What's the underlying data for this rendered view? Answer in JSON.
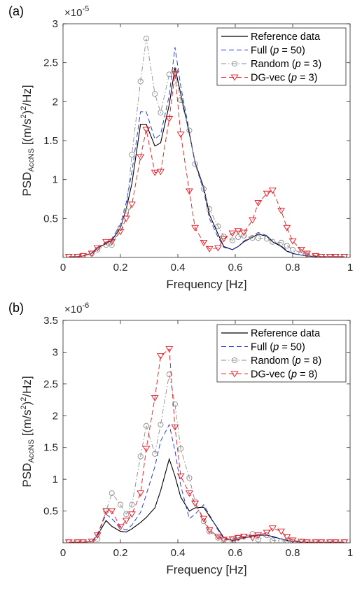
{
  "chart_data": [
    {
      "type": "line",
      "panel_label": "(a)",
      "exponent": {
        "base": "×10",
        "power": "-5"
      },
      "xlabel": "Frequency [Hz]",
      "ylabel": {
        "main": "PSD",
        "sub": "AccNS",
        "unit_a": " [(m/s",
        "sup": "2",
        "unit_b": ")",
        "sup2": "2",
        "unit_c": "/Hz]"
      },
      "xlim": [
        0,
        1
      ],
      "ylim": [
        0,
        3
      ],
      "xticks": [
        0,
        0.2,
        0.4,
        0.6,
        0.8,
        1
      ],
      "xtick_labels": [
        "0",
        "0.2",
        "0.4",
        "0.6",
        "0.8",
        "1"
      ],
      "yticks": [
        0.5,
        1,
        1.5,
        2,
        2.5,
        3
      ],
      "ytick_labels": [
        "0.5",
        "1",
        "1.5",
        "2",
        "2.5",
        "3"
      ],
      "legend_position": "top-right",
      "series": [
        {
          "name": "Reference data",
          "color": "#000000",
          "style": "solid",
          "marker": "none",
          "x": [
            0.02,
            0.05,
            0.07,
            0.1,
            0.12,
            0.15,
            0.17,
            0.2,
            0.22,
            0.24,
            0.27,
            0.29,
            0.32,
            0.34,
            0.37,
            0.39,
            0.41,
            0.44,
            0.46,
            0.49,
            0.51,
            0.54,
            0.56,
            0.59,
            0.61,
            0.63,
            0.66,
            0.68,
            0.71,
            0.73,
            0.76,
            0.78,
            0.8,
            0.83,
            0.85,
            0.88,
            0.9,
            0.93,
            0.95,
            0.98
          ],
          "y": [
            0.01,
            0.01,
            0.02,
            0.05,
            0.12,
            0.18,
            0.22,
            0.38,
            0.62,
            0.95,
            1.71,
            1.71,
            1.43,
            1.47,
            1.96,
            2.44,
            2.1,
            1.59,
            1.22,
            0.9,
            0.55,
            0.3,
            0.14,
            0.1,
            0.14,
            0.2,
            0.26,
            0.3,
            0.27,
            0.2,
            0.14,
            0.08,
            0.05,
            0.03,
            0.02,
            0.01,
            0.01,
            0.01,
            0.01,
            0.01
          ]
        },
        {
          "name": "Full (p = 50)",
          "color": "#1a2fd9",
          "style": "dashed",
          "marker": "none",
          "x": [
            0.02,
            0.05,
            0.07,
            0.1,
            0.12,
            0.15,
            0.17,
            0.2,
            0.22,
            0.24,
            0.27,
            0.29,
            0.32,
            0.34,
            0.37,
            0.39,
            0.41,
            0.44,
            0.46,
            0.49,
            0.51,
            0.54,
            0.56,
            0.59,
            0.61,
            0.63,
            0.66,
            0.68,
            0.71,
            0.73,
            0.76,
            0.78,
            0.8,
            0.83,
            0.85,
            0.88,
            0.9,
            0.93,
            0.95,
            0.98
          ],
          "y": [
            0.01,
            0.01,
            0.02,
            0.06,
            0.13,
            0.19,
            0.24,
            0.42,
            0.7,
            1.1,
            1.87,
            1.87,
            1.52,
            1.58,
            2.08,
            2.7,
            2.2,
            1.62,
            1.2,
            0.86,
            0.5,
            0.26,
            0.13,
            0.1,
            0.14,
            0.21,
            0.28,
            0.32,
            0.28,
            0.21,
            0.15,
            0.09,
            0.05,
            0.03,
            0.02,
            0.01,
            0.01,
            0.01,
            0.01,
            0.01
          ]
        },
        {
          "name": "Random (p = 3)",
          "color": "#8c8c8c",
          "style": "dashdot",
          "marker": "circle",
          "x": [
            0.02,
            0.05,
            0.07,
            0.1,
            0.12,
            0.15,
            0.17,
            0.2,
            0.22,
            0.24,
            0.27,
            0.29,
            0.32,
            0.34,
            0.37,
            0.39,
            0.41,
            0.44,
            0.46,
            0.49,
            0.51,
            0.54,
            0.56,
            0.59,
            0.61,
            0.63,
            0.66,
            0.68,
            0.71,
            0.73,
            0.76,
            0.78,
            0.8,
            0.83,
            0.85,
            0.88,
            0.9,
            0.93,
            0.95,
            0.98
          ],
          "y": [
            0.01,
            0.01,
            0.02,
            0.05,
            0.1,
            0.16,
            0.16,
            0.38,
            0.6,
            1.32,
            2.26,
            2.81,
            2.1,
            1.86,
            2.35,
            2.4,
            2.02,
            1.63,
            1.2,
            0.88,
            0.62,
            0.4,
            0.27,
            0.22,
            0.26,
            0.28,
            0.25,
            0.25,
            0.24,
            0.2,
            0.19,
            0.15,
            0.1,
            0.06,
            0.04,
            0.02,
            0.01,
            0.01,
            0.01,
            0.01
          ]
        },
        {
          "name": "DG-vec (p = 3)",
          "color": "#e8141e",
          "style": "dashed",
          "marker": "triangle-down",
          "x": [
            0.02,
            0.05,
            0.07,
            0.1,
            0.12,
            0.15,
            0.17,
            0.2,
            0.22,
            0.24,
            0.27,
            0.29,
            0.32,
            0.34,
            0.37,
            0.39,
            0.41,
            0.44,
            0.46,
            0.49,
            0.51,
            0.54,
            0.56,
            0.59,
            0.61,
            0.63,
            0.66,
            0.68,
            0.71,
            0.73,
            0.76,
            0.78,
            0.8,
            0.83,
            0.85,
            0.88,
            0.9,
            0.93,
            0.95,
            0.98
          ],
          "y": [
            0.01,
            0.01,
            0.02,
            0.05,
            0.12,
            0.2,
            0.2,
            0.33,
            0.5,
            0.68,
            1.29,
            1.64,
            1.09,
            1.1,
            1.78,
            2.36,
            1.58,
            0.85,
            0.38,
            0.19,
            0.11,
            0.12,
            0.24,
            0.31,
            0.34,
            0.32,
            0.48,
            0.7,
            0.82,
            0.86,
            0.6,
            0.38,
            0.21,
            0.1,
            0.05,
            0.02,
            0.01,
            0.01,
            0.01,
            0.01
          ]
        }
      ]
    },
    {
      "type": "line",
      "panel_label": "(b)",
      "exponent": {
        "base": "×10",
        "power": "-6"
      },
      "xlabel": "Frequency [Hz]",
      "ylabel": {
        "main": "PSD",
        "sub": "AccNS",
        "unit_a": " [(m/s",
        "sup": "2",
        "unit_b": ")",
        "sup2": "2",
        "unit_c": "/Hz]"
      },
      "xlim": [
        0,
        1
      ],
      "ylim": [
        0,
        3.5
      ],
      "xticks": [
        0,
        0.2,
        0.4,
        0.6,
        0.8,
        1
      ],
      "xtick_labels": [
        "0",
        "0.2",
        "0.4",
        "0.6",
        "0.8",
        "1"
      ],
      "yticks": [
        0.5,
        1,
        1.5,
        2,
        2.5,
        3,
        3.5
      ],
      "ytick_labels": [
        "0.5",
        "1",
        "1.5",
        "2",
        "2.5",
        "3",
        "3.5"
      ],
      "legend_position": "top-right",
      "series": [
        {
          "name": "Reference data",
          "color": "#000000",
          "style": "solid",
          "marker": "none",
          "x": [
            0.02,
            0.05,
            0.07,
            0.1,
            0.12,
            0.15,
            0.17,
            0.2,
            0.22,
            0.24,
            0.27,
            0.29,
            0.32,
            0.34,
            0.37,
            0.39,
            0.41,
            0.44,
            0.46,
            0.49,
            0.51,
            0.54,
            0.56,
            0.59,
            0.61,
            0.63,
            0.66,
            0.68,
            0.71,
            0.73,
            0.76,
            0.78,
            0.8,
            0.83,
            0.85,
            0.88,
            0.9,
            0.93,
            0.95,
            0.98
          ],
          "y": [
            0.01,
            0.01,
            0.01,
            0.02,
            0.12,
            0.35,
            0.26,
            0.18,
            0.17,
            0.22,
            0.32,
            0.4,
            0.55,
            0.82,
            1.32,
            1.05,
            0.72,
            0.5,
            0.55,
            0.56,
            0.42,
            0.22,
            0.08,
            0.04,
            0.05,
            0.08,
            0.1,
            0.12,
            0.12,
            0.1,
            0.06,
            0.04,
            0.02,
            0.01,
            0.01,
            0.01,
            0.01,
            0.01,
            0.01,
            0.01
          ]
        },
        {
          "name": "Full (p = 50)",
          "color": "#1a2fd9",
          "style": "dashed",
          "marker": "none",
          "x": [
            0.02,
            0.05,
            0.07,
            0.1,
            0.12,
            0.15,
            0.17,
            0.2,
            0.22,
            0.24,
            0.27,
            0.29,
            0.32,
            0.34,
            0.37,
            0.39,
            0.41,
            0.44,
            0.46,
            0.49,
            0.51,
            0.54,
            0.56,
            0.59,
            0.61,
            0.63,
            0.66,
            0.68,
            0.71,
            0.73,
            0.76,
            0.78,
            0.8,
            0.83,
            0.85,
            0.88,
            0.9,
            0.93,
            0.95,
            0.98
          ],
          "y": [
            0.01,
            0.01,
            0.01,
            0.02,
            0.14,
            0.45,
            0.38,
            0.24,
            0.2,
            0.28,
            0.48,
            0.76,
            1.2,
            1.6,
            1.86,
            1.45,
            0.9,
            0.38,
            0.45,
            0.6,
            0.44,
            0.2,
            0.07,
            0.04,
            0.06,
            0.09,
            0.11,
            0.13,
            0.12,
            0.09,
            0.06,
            0.03,
            0.02,
            0.01,
            0.01,
            0.01,
            0.01,
            0.01,
            0.01,
            0.01
          ]
        },
        {
          "name": "Random (p = 8)",
          "color": "#8c8c8c",
          "style": "dashdot",
          "marker": "circle",
          "x": [
            0.02,
            0.05,
            0.07,
            0.1,
            0.12,
            0.15,
            0.17,
            0.2,
            0.22,
            0.24,
            0.27,
            0.29,
            0.32,
            0.34,
            0.37,
            0.39,
            0.41,
            0.44,
            0.46,
            0.49,
            0.51,
            0.54,
            0.56,
            0.59,
            0.61,
            0.63,
            0.66,
            0.68,
            0.71,
            0.73,
            0.76,
            0.78,
            0.8,
            0.83,
            0.85,
            0.88,
            0.9,
            0.93,
            0.95,
            0.98
          ],
          "y": [
            0.01,
            0.01,
            0.01,
            0.02,
            0.06,
            0.5,
            0.78,
            0.6,
            0.45,
            0.6,
            1.36,
            1.84,
            1.4,
            1.86,
            2.65,
            2.18,
            1.48,
            1.02,
            0.65,
            0.34,
            0.18,
            0.08,
            0.04,
            0.05,
            0.08,
            0.1,
            0.14,
            0.05,
            0.12,
            0.04,
            0.03,
            0.04,
            0.02,
            0.01,
            0.01,
            0.01,
            0.01,
            0.01,
            0.01,
            0.01
          ]
        },
        {
          "name": "DG-vec (p = 8)",
          "color": "#e8141e",
          "style": "dashed",
          "marker": "triangle-down",
          "x": [
            0.02,
            0.05,
            0.07,
            0.1,
            0.12,
            0.15,
            0.17,
            0.2,
            0.22,
            0.24,
            0.27,
            0.29,
            0.32,
            0.34,
            0.37,
            0.39,
            0.41,
            0.44,
            0.46,
            0.49,
            0.51,
            0.54,
            0.56,
            0.59,
            0.61,
            0.63,
            0.66,
            0.68,
            0.71,
            0.73,
            0.76,
            0.78,
            0.8,
            0.83,
            0.85,
            0.88,
            0.9,
            0.93,
            0.95,
            0.98
          ],
          "y": [
            0.01,
            0.01,
            0.01,
            0.02,
            0.12,
            0.5,
            0.5,
            0.25,
            0.35,
            0.45,
            0.78,
            1.48,
            2.28,
            2.94,
            3.05,
            1.82,
            1.05,
            0.78,
            0.62,
            0.38,
            0.2,
            0.1,
            0.05,
            0.06,
            0.08,
            0.1,
            0.08,
            0.12,
            0.16,
            0.23,
            0.18,
            0.09,
            0.04,
            0.02,
            0.01,
            0.01,
            0.01,
            0.01,
            0.01,
            0.01
          ]
        }
      ]
    }
  ]
}
